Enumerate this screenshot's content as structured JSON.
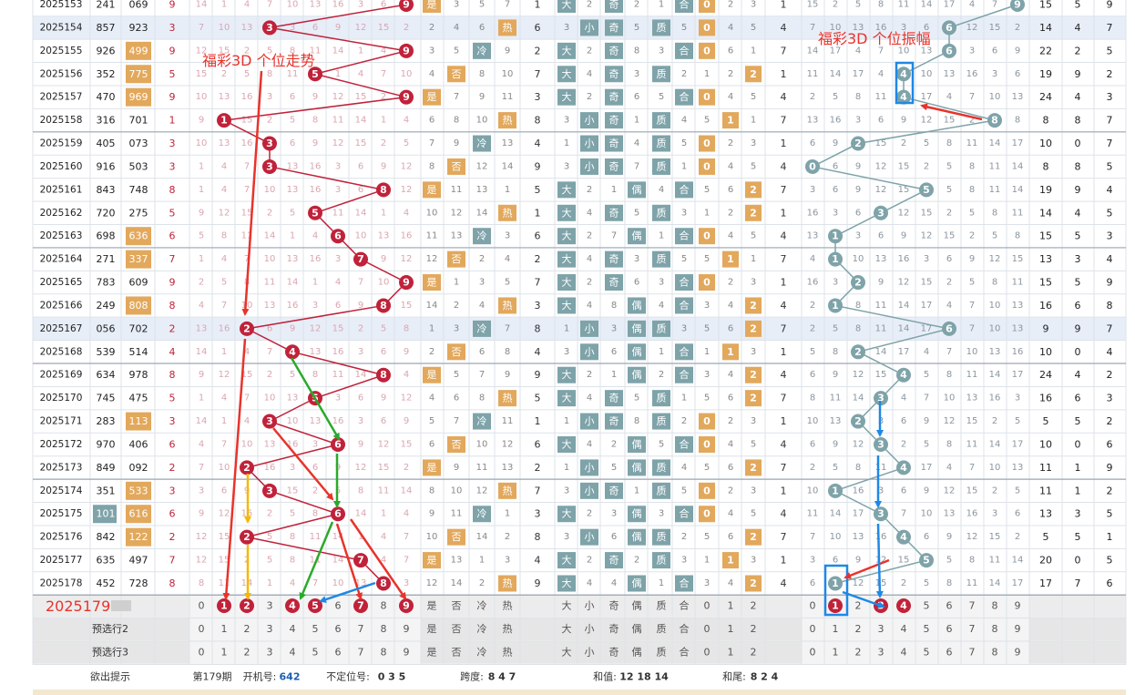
{
  "chart_data": {
    "type": "table",
    "title": "",
    "labels": {
      "trend": "福彩3D 个位走势",
      "amplitude": "福彩3D 个位振幅",
      "next_issue": "2025179",
      "preselect2": "预选行2",
      "preselect3": "预选行3",
      "hint": "欲出提示"
    },
    "column_labels": {
      "digits": [
        "0",
        "1",
        "2",
        "3",
        "4",
        "5",
        "6",
        "7",
        "8",
        "9"
      ],
      "shape": [
        "是",
        "否",
        "冷",
        "热"
      ],
      "size": [
        "大",
        "小"
      ],
      "parity": [
        "奇",
        "偶"
      ],
      "prime": [
        "质",
        "合"
      ],
      "route": [
        "0",
        "1",
        "2"
      ]
    },
    "rows": [
      {
        "issue": "2025153",
        "trial": "241",
        "draw": "069",
        "unit": 9,
        "amp": "9",
        "s1": "15",
        "s2": "5",
        "s3": "9"
      },
      {
        "issue": "2025154",
        "trial": "857",
        "draw": "923",
        "unit": 3,
        "amp": "6",
        "s1": "14",
        "s2": "4",
        "s3": "7"
      },
      {
        "issue": "2025155",
        "trial": "926",
        "draw": "499",
        "unit": 9,
        "amp": "6",
        "s1": "22",
        "s2": "2",
        "s3": "5"
      },
      {
        "issue": "2025156",
        "trial": "352",
        "draw": "775",
        "unit": 5,
        "amp": "4",
        "s1": "19",
        "s2": "9",
        "s3": "2"
      },
      {
        "issue": "2025157",
        "trial": "470",
        "draw": "969",
        "unit": 9,
        "amp": "4",
        "s1": "24",
        "s2": "4",
        "s3": "3"
      },
      {
        "issue": "2025158",
        "trial": "316",
        "draw": "701",
        "unit": 1,
        "amp": "8",
        "s1": "8",
        "s2": "8",
        "s3": "7"
      },
      {
        "issue": "2025159",
        "trial": "405",
        "draw": "073",
        "unit": 3,
        "amp": "2",
        "s1": "10",
        "s2": "0",
        "s3": "7"
      },
      {
        "issue": "2025160",
        "trial": "916",
        "draw": "503",
        "unit": 3,
        "amp": "0",
        "s1": "8",
        "s2": "8",
        "s3": "5"
      },
      {
        "issue": "2025161",
        "trial": "843",
        "draw": "748",
        "unit": 8,
        "amp": "5",
        "s1": "19",
        "s2": "9",
        "s3": "4"
      },
      {
        "issue": "2025162",
        "trial": "720",
        "draw": "275",
        "unit": 5,
        "amp": "3",
        "s1": "14",
        "s2": "4",
        "s3": "5"
      },
      {
        "issue": "2025163",
        "trial": "698",
        "draw": "636",
        "unit": 6,
        "amp": "1",
        "s1": "15",
        "s2": "5",
        "s3": "3"
      },
      {
        "issue": "2025164",
        "trial": "271",
        "draw": "337",
        "unit": 7,
        "amp": "1",
        "s1": "13",
        "s2": "3",
        "s3": "4"
      },
      {
        "issue": "2025165",
        "trial": "783",
        "draw": "609",
        "unit": 9,
        "amp": "2",
        "s1": "15",
        "s2": "5",
        "s3": "9"
      },
      {
        "issue": "2025166",
        "trial": "249",
        "draw": "808",
        "unit": 8,
        "amp": "1",
        "s1": "16",
        "s2": "6",
        "s3": "8"
      },
      {
        "issue": "2025167",
        "trial": "056",
        "draw": "702",
        "unit": 2,
        "amp": "6",
        "s1": "9",
        "s2": "9",
        "s3": "7"
      },
      {
        "issue": "2025168",
        "trial": "539",
        "draw": "514",
        "unit": 4,
        "amp": "2",
        "s1": "10",
        "s2": "0",
        "s3": "4"
      },
      {
        "issue": "2025169",
        "trial": "634",
        "draw": "978",
        "unit": 8,
        "amp": "4",
        "s1": "24",
        "s2": "4",
        "s3": "2"
      },
      {
        "issue": "2025170",
        "trial": "745",
        "draw": "475",
        "unit": 5,
        "amp": "3",
        "s1": "16",
        "s2": "6",
        "s3": "3"
      },
      {
        "issue": "2025171",
        "trial": "283",
        "draw": "113",
        "unit": 3,
        "amp": "2",
        "s1": "5",
        "s2": "5",
        "s3": "2"
      },
      {
        "issue": "2025172",
        "trial": "970",
        "draw": "406",
        "unit": 6,
        "amp": "3",
        "s1": "10",
        "s2": "0",
        "s3": "6"
      },
      {
        "issue": "2025173",
        "trial": "849",
        "draw": "092",
        "unit": 2,
        "amp": "4",
        "s1": "11",
        "s2": "1",
        "s3": "9"
      },
      {
        "issue": "2025174",
        "trial": "351",
        "draw": "533",
        "unit": 3,
        "amp": "1",
        "s1": "11",
        "s2": "1",
        "s3": "2"
      },
      {
        "issue": "2025175",
        "trial": "101",
        "draw": "616",
        "unit": 6,
        "amp": "3",
        "s1": "13",
        "s2": "3",
        "s3": "5"
      },
      {
        "issue": "2025176",
        "trial": "842",
        "draw": "122",
        "unit": 2,
        "amp": "4",
        "s1": "5",
        "s2": "5",
        "s3": "1"
      },
      {
        "issue": "2025177",
        "trial": "635",
        "draw": "497",
        "unit": 7,
        "amp": "5",
        "s1": "20",
        "s2": "0",
        "s3": "5"
      },
      {
        "issue": "2025178",
        "trial": "452",
        "draw": "728",
        "unit": 8,
        "amp": "1",
        "s1": "17",
        "s2": "7",
        "s3": "6"
      }
    ],
    "selected_next_unit": [
      "1",
      "2",
      "4",
      "5",
      "7",
      "9"
    ],
    "selected_next_amp": [
      "1",
      "3",
      "4"
    ],
    "hint": {
      "issue_label": "第179期",
      "open_label": "开机号:",
      "open_value": "642",
      "pos_label": "不定位号:",
      "pos_value": "0 3 5",
      "span_label": "跨度:",
      "span_value": "8 4 7",
      "sum_label": "和值:",
      "sum_value": "12 18 14",
      "tail_label": "和尾:",
      "tail_value": "8 2 4"
    },
    "colors": {
      "ball_unit": "#c0223a",
      "ball_amp": "#7ea3a9",
      "trend_line": "#c0223a",
      "amp_line": "#7ea3a9",
      "badge_orange": "#e2a85c",
      "badge_teal": "#7ea3a9",
      "arrow_red": "#e8332b",
      "arrow_green": "#2aaa2a",
      "arrow_orange": "#f5b800",
      "arrow_blue": "#1e88e5"
    }
  }
}
